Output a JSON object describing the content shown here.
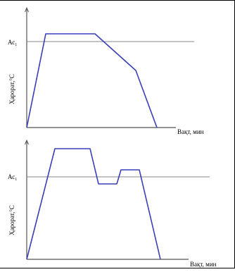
{
  "diagrams": [
    {
      "id": "top",
      "ylabel": "Ҳарорат,°С",
      "xlabel": "Вақт, мин",
      "reference_line": {
        "label_main": "Ас",
        "label_sub": "1"
      },
      "curve_color": "#3a3fb8",
      "line_color": "#8a8a8a",
      "grid_on": false
    },
    {
      "id": "bottom",
      "ylabel": "Ҳарорат,°С",
      "xlabel": "Вақт, мин",
      "reference_line": {
        "label_main": "Ас",
        "label_sub": "1"
      },
      "curve_color": "#3a3fb8",
      "line_color": "#8a8a8a",
      "grid_on": false
    }
  ]
}
